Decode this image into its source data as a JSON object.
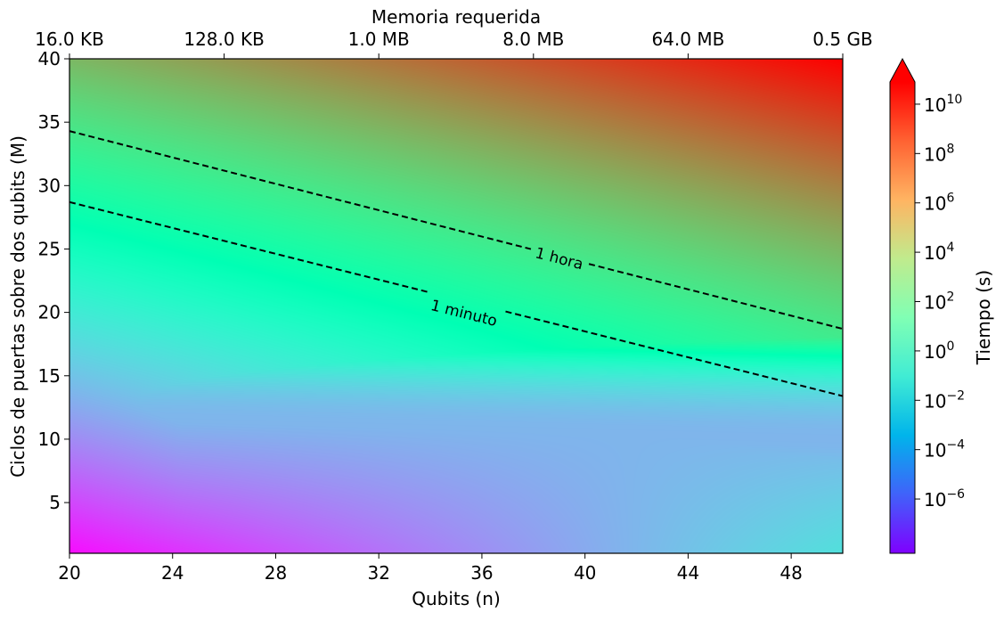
{
  "chart_data": {
    "type": "heatmap",
    "xlabel": "Qubits (n)",
    "ylabel": "Ciclos de puertas sobre dos qubits (M)",
    "top_xlabel": "Memoria requerida",
    "colorbar_label": "Tiempo (s)",
    "xlim": [
      20,
      50
    ],
    "ylim": [
      1,
      40
    ],
    "x_ticks": [
      20,
      24,
      28,
      32,
      36,
      40,
      44,
      48
    ],
    "x_tick_labels": [
      "20",
      "24",
      "28",
      "32",
      "36",
      "40",
      "44",
      "48"
    ],
    "y_ticks": [
      5,
      10,
      15,
      20,
      25,
      30,
      35,
      40
    ],
    "y_tick_labels": [
      "5",
      "10",
      "15",
      "20",
      "25",
      "30",
      "35",
      "40"
    ],
    "top_ticks": [
      20,
      26,
      32,
      38,
      44,
      50
    ],
    "top_tick_labels": [
      "16.0 KB",
      "128.0 KB",
      "1.0 MB",
      "8.0 MB",
      "64.0 MB",
      "0.5 GB"
    ],
    "colorbar_ticks": [
      {
        "exponent": -6,
        "base": "10",
        "exp": "−6"
      },
      {
        "exponent": -4,
        "base": "10",
        "exp": "−4"
      },
      {
        "exponent": -2,
        "base": "10",
        "exp": "−2"
      },
      {
        "exponent": 0,
        "base": "10",
        "exp": "0"
      },
      {
        "exponent": 2,
        "base": "10",
        "exp": "2"
      },
      {
        "exponent": 4,
        "base": "10",
        "exp": "4"
      },
      {
        "exponent": 6,
        "base": "10",
        "exp": "6"
      },
      {
        "exponent": 8,
        "base": "10",
        "exp": "8"
      },
      {
        "exponent": 10,
        "base": "10",
        "exp": "10"
      }
    ],
    "colorbar_log_range": [
      -8.2,
      10.9
    ],
    "colorbar_extend": "max",
    "colormap": "rainbow",
    "field_log10_seconds": {
      "corners": [
        {
          "n": 20,
          "M": 1,
          "log10_t": -7.9
        },
        {
          "n": 50,
          "M": 1,
          "log10_t": -1.7
        },
        {
          "n": 20,
          "M": 40,
          "log10_t": 6.0
        },
        {
          "n": 50,
          "M": 40,
          "log10_t": 10.9
        }
      ],
      "valley": {
        "n_range": [
          20,
          50
        ],
        "M_range": [
          10,
          14
        ],
        "log10_t": -3.4
      }
    },
    "contours": [
      {
        "label": "1 hora",
        "seconds": 3600,
        "points": [
          [
            20,
            34.3
          ],
          [
            50,
            18.7
          ]
        ],
        "label_at": [
          39,
          24.2
        ]
      },
      {
        "label": "1 minuto",
        "seconds": 60,
        "points": [
          [
            20,
            28.7
          ],
          [
            50,
            13.4
          ]
        ],
        "label_at": [
          35.3,
          19.9
        ]
      }
    ],
    "contour_style": "dashed",
    "grid": false
  }
}
